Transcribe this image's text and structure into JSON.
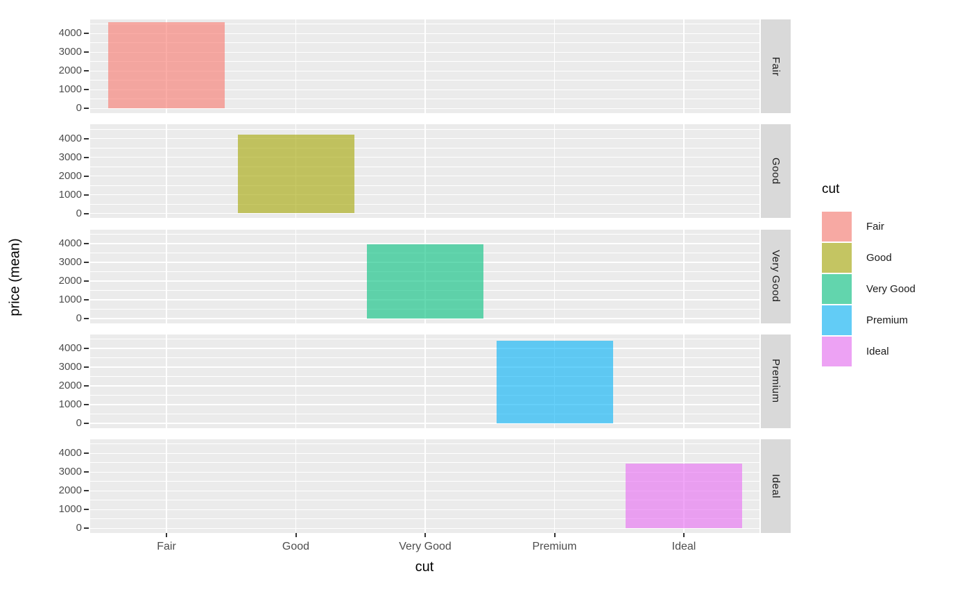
{
  "figure": {
    "background": "#FFFFFF"
  },
  "chart_data": {
    "type": "bar",
    "title": "",
    "xlabel": "cut",
    "ylabel": "price (mean)",
    "facet_variable": "cut",
    "facet_strip_side": "right",
    "categories": [
      "Fair",
      "Good",
      "Very Good",
      "Premium",
      "Ideal"
    ],
    "facets": [
      {
        "label": "Fair",
        "category": "Fair",
        "value": 4600
      },
      {
        "label": "Good",
        "category": "Good",
        "value": 4200
      },
      {
        "label": "Very Good",
        "category": "Very Good",
        "value": 3950
      },
      {
        "label": "Premium",
        "category": "Premium",
        "value": 4420
      },
      {
        "label": "Ideal",
        "category": "Ideal",
        "value": 3450
      }
    ],
    "series": [
      {
        "name": "Fair",
        "color": "#F8766D"
      },
      {
        "name": "Good",
        "color": "#A3A500"
      },
      {
        "name": "Very Good",
        "color": "#00BF7D"
      },
      {
        "name": "Premium",
        "color": "#00B0F6"
      },
      {
        "name": "Ideal",
        "color": "#E76BF3"
      }
    ],
    "fill_alpha": 0.6,
    "y_major_ticks": [
      0,
      1000,
      2000,
      3000,
      4000
    ],
    "y_minor_ticks": [
      500,
      1500,
      2500,
      3500,
      4500
    ],
    "ylim": [
      0,
      4750
    ],
    "grid": "on",
    "panel_background": "#EBEBEB",
    "grid_color": "#FFFFFF",
    "strip_background": "#D9D9D9",
    "axis_text_color": "#4D4D4D",
    "tick_mark_color": "#333333",
    "legend": {
      "title": "cut",
      "position": "right",
      "items": [
        "Fair",
        "Good",
        "Very Good",
        "Premium",
        "Ideal"
      ]
    }
  }
}
